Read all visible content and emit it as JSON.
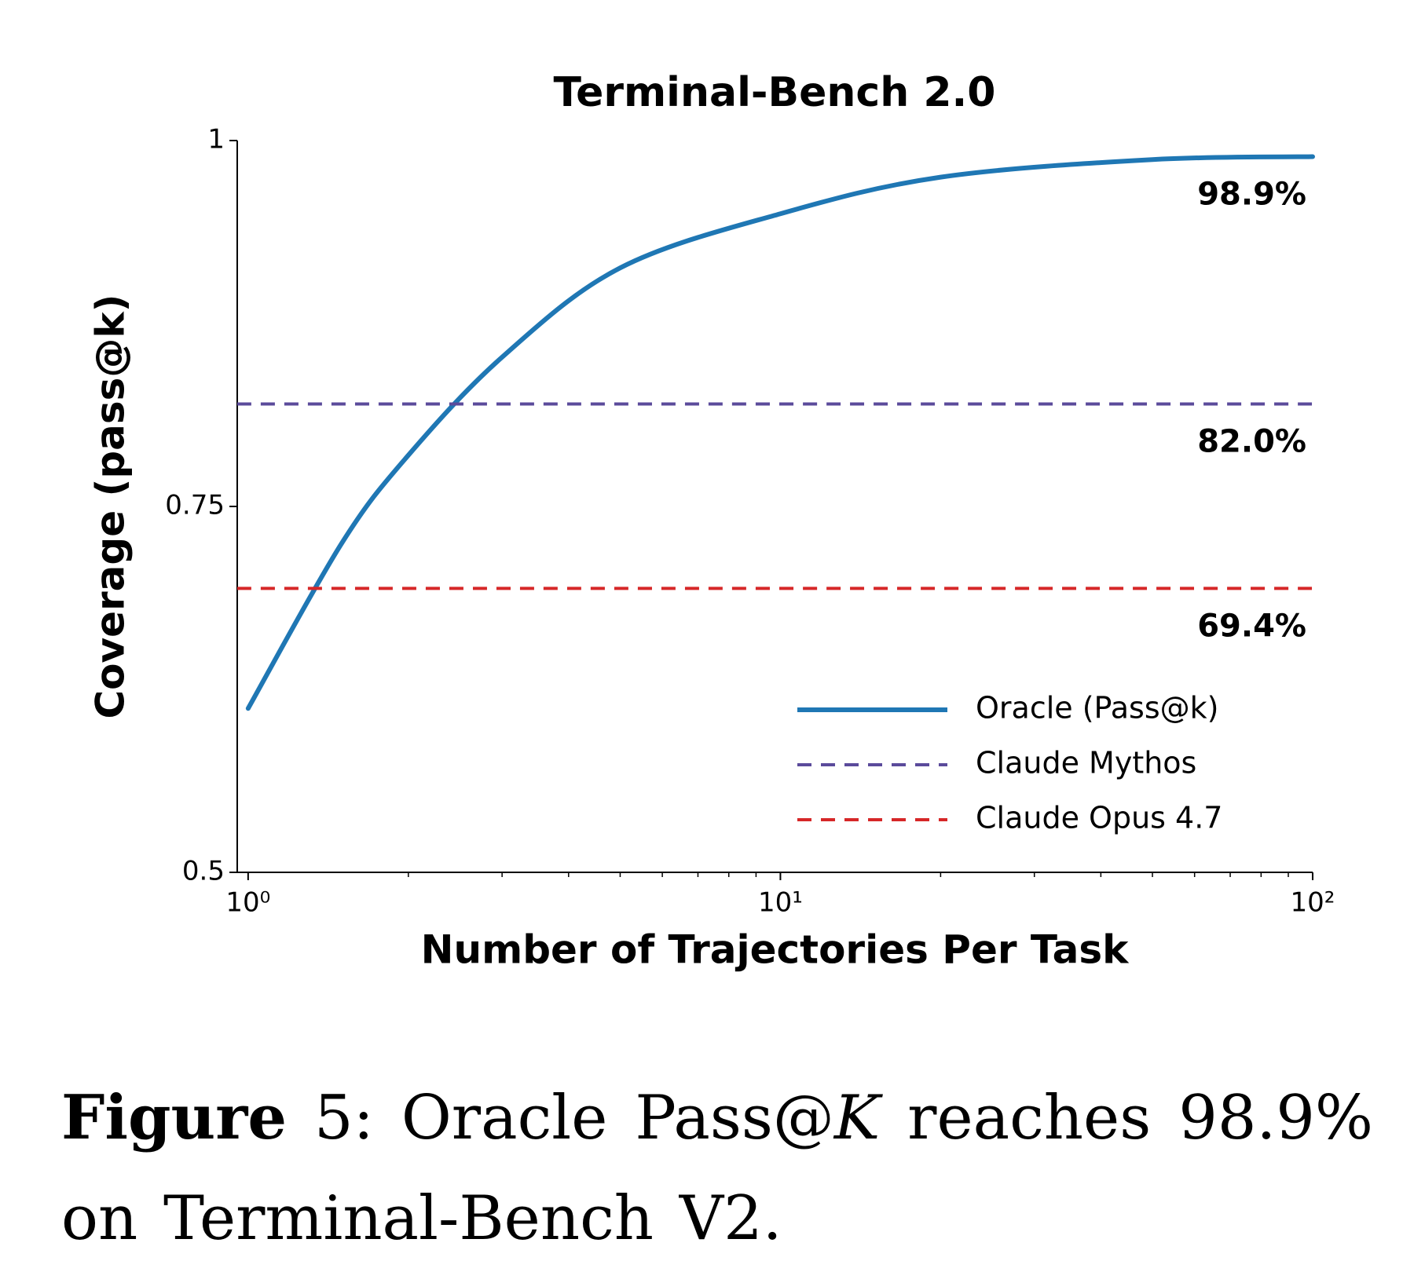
{
  "chart_data": {
    "type": "line",
    "title": "Terminal-Bench 2.0",
    "x_label": "Number of Trajectories Per Task",
    "y_label": "Coverage (pass@k)",
    "x_scale": "log",
    "xlim": [
      0.954,
      100
    ],
    "ylim": [
      0.5,
      1
    ],
    "xticks": [
      {
        "value": 1,
        "label": "10⁰"
      },
      {
        "value": 10,
        "label": "10¹"
      },
      {
        "value": 100,
        "label": "10²"
      }
    ],
    "xminorticks": [
      2,
      3,
      4,
      5,
      6,
      7,
      8,
      9,
      20,
      30,
      40,
      50,
      60,
      70,
      80,
      90
    ],
    "yticks": [
      0.5,
      0.75,
      1
    ],
    "grid": false,
    "legend": "lower right",
    "series": [
      {
        "name": "Oracle (Pass@k)",
        "color": "#1f77b4",
        "style": "solid",
        "x": [
          1,
          1.5,
          2,
          3,
          5,
          10,
          20,
          50,
          100
        ],
        "values": [
          0.612,
          0.725,
          0.785,
          0.852,
          0.913,
          0.95,
          0.975,
          0.987,
          0.989
        ],
        "value_labels": [
          null,
          null,
          null,
          null,
          null,
          null,
          null,
          null,
          "98.9%"
        ]
      },
      {
        "name": "Claude Mythos",
        "color": "#5b4b9b",
        "style": "dashed",
        "x": [
          0.954,
          100
        ],
        "values": [
          0.82,
          0.82
        ],
        "value_labels": [
          null,
          "82.0%"
        ]
      },
      {
        "name": "Claude Opus 4.7",
        "color": "#d62728",
        "style": "dashed",
        "x": [
          0.954,
          100
        ],
        "values": [
          0.694,
          0.694
        ],
        "value_labels": [
          null,
          "69.4%"
        ]
      }
    ]
  },
  "caption": {
    "label": "Figure",
    "text_before": "5: Oracle Pass@",
    "math": "K",
    "text_after": " reaches 98.9% on Terminal-Bench V2."
  }
}
